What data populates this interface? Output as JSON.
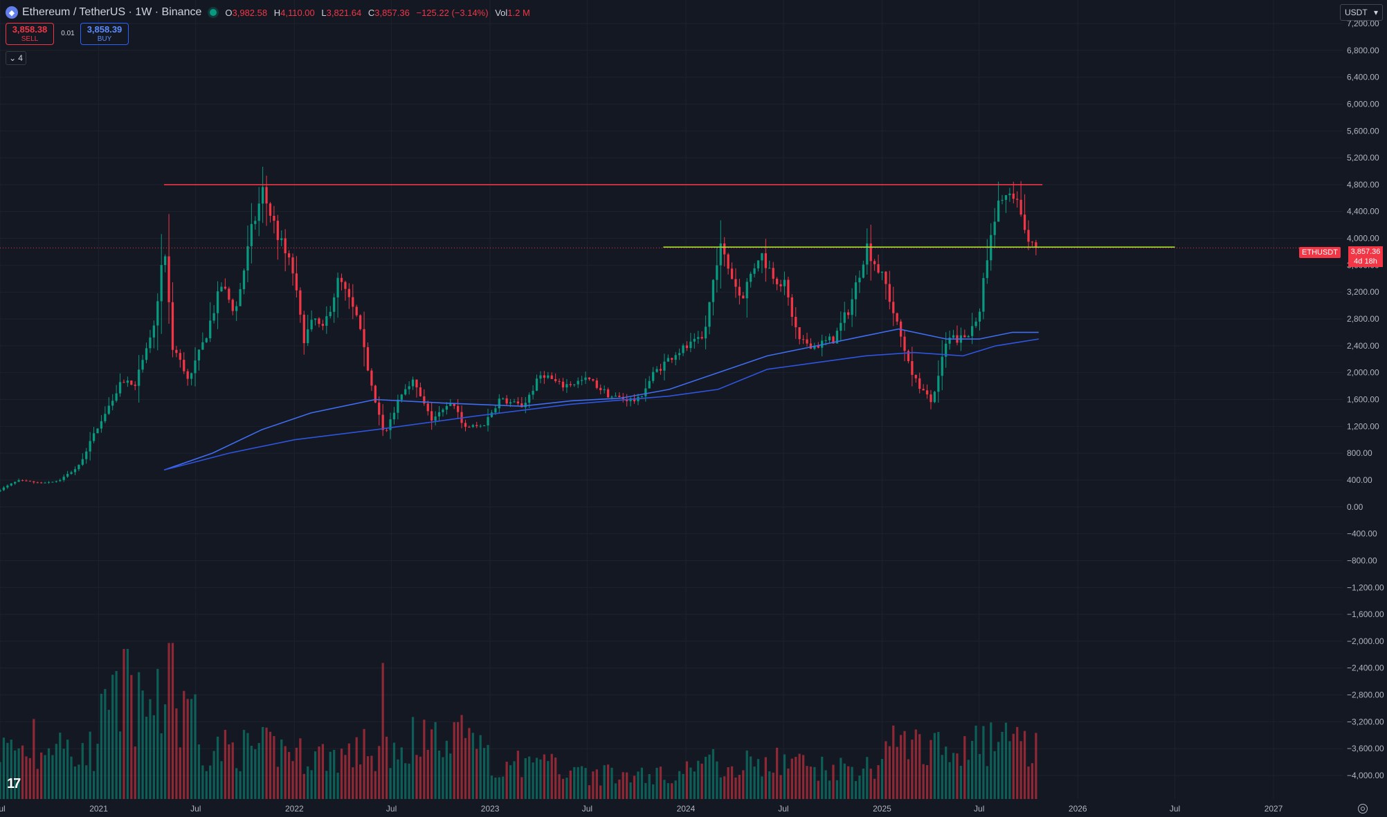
{
  "header": {
    "title": "Ethereum / TetherUS · 1W · Binance",
    "ohlc": {
      "open_label": "O",
      "open": "3,982.58",
      "high_label": "H",
      "high": "4,110.00",
      "low_label": "L",
      "low": "3,821.64",
      "close_label": "C",
      "close": "3,857.36",
      "change": "−125.22 (−3.14%)",
      "vol_label": "Vol",
      "vol": "1.2 M"
    }
  },
  "trade": {
    "sell_price": "3,858.38",
    "sell_label": "SELL",
    "buy_price": "3,858.39",
    "buy_label": "BUY",
    "spread": "0.01"
  },
  "indicators_toggle": {
    "count": "4"
  },
  "currency": "USDT",
  "last_price_tag": {
    "symbol": "ETHUSDT",
    "price": "3,857.36",
    "countdown": "4d 18h"
  },
  "colors": {
    "background": "#141823",
    "up": "#089981",
    "down": "#f23645",
    "ma_fast": "#3f6ef2",
    "ma_slow": "#2f55e0",
    "resistance": "#f23645",
    "support": "#a6e22e",
    "grid": "#1e222d"
  },
  "chart_data": {
    "type": "candlestick",
    "interval": "1W",
    "y_ticks": [
      7200,
      6800,
      6400,
      6000,
      5600,
      5200,
      4800,
      4400,
      4000,
      3600,
      3200,
      2800,
      2400,
      2000,
      1600,
      1200,
      800,
      400,
      0,
      -400,
      -800,
      -1200,
      -1600,
      -2000,
      -2400,
      -2800,
      -3200,
      -3600,
      -4000
    ],
    "y_tick_labels": [
      "7,200.00",
      "6,800.00",
      "6,400.00",
      "6,000.00",
      "5,600.00",
      "5,200.00",
      "4,800.00",
      "4,400.00",
      "4,000.00",
      "3,600.00",
      "3,200.00",
      "2,800.00",
      "2,400.00",
      "2,000.00",
      "1,600.00",
      "1,200.00",
      "800.00",
      "400.00",
      "0.00",
      "−400.00",
      "−800.00",
      "−1,200.00",
      "−1,600.00",
      "−2,000.00",
      "−2,400.00",
      "−2,800.00",
      "−3,200.00",
      "−3,600.00",
      "−4,000.00"
    ],
    "ylim": [
      -4350,
      7550
    ],
    "x_ticks": [
      {
        "label": "Jul",
        "date": "2020-07-01"
      },
      {
        "label": "2021",
        "date": "2021-01-01"
      },
      {
        "label": "Jul",
        "date": "2021-07-01"
      },
      {
        "label": "2022",
        "date": "2022-01-01"
      },
      {
        "label": "Jul",
        "date": "2022-07-01"
      },
      {
        "label": "2023",
        "date": "2023-01-01"
      },
      {
        "label": "Jul",
        "date": "2023-07-01"
      },
      {
        "label": "2024",
        "date": "2024-01-01"
      },
      {
        "label": "Jul",
        "date": "2024-07-01"
      },
      {
        "label": "2025",
        "date": "2025-01-01"
      },
      {
        "label": "Jul",
        "date": "2025-07-01"
      },
      {
        "label": "2026",
        "date": "2026-01-01"
      },
      {
        "label": "Jul",
        "date": "2026-07-01"
      },
      {
        "label": "2027",
        "date": "2027-01-01"
      }
    ],
    "xlim": [
      "2020-07-01",
      "2027-05-10"
    ],
    "last_price": 3857.36,
    "price_path": [
      [
        "2020-07-01",
        230
      ],
      [
        "2020-08-10",
        390
      ],
      [
        "2020-09-20",
        360
      ],
      [
        "2020-10-25",
        390
      ],
      [
        "2020-12-01",
        600
      ],
      [
        "2021-01-10",
        1250
      ],
      [
        "2021-02-20",
        1900
      ],
      [
        "2021-03-15",
        1800
      ],
      [
        "2021-04-20",
        2600
      ],
      [
        "2021-05-10",
        3900
      ],
      [
        "2021-05-25",
        2400
      ],
      [
        "2021-06-25",
        1900
      ],
      [
        "2021-07-25",
        2500
      ],
      [
        "2021-08-25",
        3300
      ],
      [
        "2021-09-20",
        2900
      ],
      [
        "2021-10-20",
        4100
      ],
      [
        "2021-11-10",
        4700
      ],
      [
        "2021-12-10",
        4000
      ],
      [
        "2022-01-05",
        3500
      ],
      [
        "2022-01-25",
        2500
      ],
      [
        "2022-02-15",
        2800
      ],
      [
        "2022-03-01",
        2600
      ],
      [
        "2022-04-01",
        3400
      ],
      [
        "2022-05-05",
        2800
      ],
      [
        "2022-06-01",
        1800
      ],
      [
        "2022-06-25",
        1050
      ],
      [
        "2022-07-25",
        1700
      ],
      [
        "2022-08-15",
        1900
      ],
      [
        "2022-09-20",
        1300
      ],
      [
        "2022-11-01",
        1550
      ],
      [
        "2022-11-20",
        1200
      ],
      [
        "2022-12-25",
        1200
      ],
      [
        "2023-01-25",
        1600
      ],
      [
        "2023-03-10",
        1500
      ],
      [
        "2023-04-15",
        2000
      ],
      [
        "2023-05-20",
        1800
      ],
      [
        "2023-07-10",
        1900
      ],
      [
        "2023-08-20",
        1650
      ],
      [
        "2023-10-10",
        1580
      ],
      [
        "2023-11-10",
        2000
      ],
      [
        "2023-12-20",
        2300
      ],
      [
        "2024-02-10",
        2500
      ],
      [
        "2024-03-10",
        3900
      ],
      [
        "2024-04-20",
        3100
      ],
      [
        "2024-05-25",
        3800
      ],
      [
        "2024-06-15",
        3500
      ],
      [
        "2024-07-10",
        3300
      ],
      [
        "2024-08-05",
        2500
      ],
      [
        "2024-09-05",
        2400
      ],
      [
        "2024-10-10",
        2500
      ],
      [
        "2024-11-10",
        3000
      ],
      [
        "2024-12-10",
        3900
      ],
      [
        "2025-01-15",
        3300
      ],
      [
        "2025-02-05",
        2700
      ],
      [
        "2025-03-10",
        1900
      ],
      [
        "2025-04-10",
        1550
      ],
      [
        "2025-05-10",
        2500
      ],
      [
        "2025-06-15",
        2500
      ],
      [
        "2025-07-10",
        3000
      ],
      [
        "2025-07-25",
        3800
      ],
      [
        "2025-08-20",
        4700
      ],
      [
        "2025-09-15",
        4500
      ],
      [
        "2025-10-10",
        3950
      ],
      [
        "2025-10-20",
        3857
      ]
    ],
    "moving_averages": [
      {
        "color_key": "ma_fast",
        "points": [
          [
            "2021-05-03",
            550
          ],
          [
            "2021-08-01",
            800
          ],
          [
            "2021-11-01",
            1150
          ],
          [
            "2022-02-01",
            1400
          ],
          [
            "2022-06-01",
            1600
          ],
          [
            "2022-10-01",
            1550
          ],
          [
            "2023-03-01",
            1500
          ],
          [
            "2023-06-01",
            1580
          ],
          [
            "2023-09-01",
            1620
          ],
          [
            "2023-12-01",
            1750
          ],
          [
            "2024-03-01",
            2000
          ],
          [
            "2024-06-01",
            2250
          ],
          [
            "2024-09-01",
            2400
          ],
          [
            "2024-12-01",
            2550
          ],
          [
            "2025-02-01",
            2650
          ],
          [
            "2025-05-01",
            2500
          ],
          [
            "2025-07-01",
            2500
          ],
          [
            "2025-09-01",
            2600
          ],
          [
            "2025-10-20",
            2600
          ]
        ]
      },
      {
        "color_key": "ma_slow",
        "points": [
          [
            "2021-05-03",
            550
          ],
          [
            "2021-09-01",
            800
          ],
          [
            "2022-01-01",
            1000
          ],
          [
            "2022-06-01",
            1150
          ],
          [
            "2022-12-01",
            1350
          ],
          [
            "2023-06-01",
            1530
          ],
          [
            "2023-12-01",
            1650
          ],
          [
            "2024-03-01",
            1750
          ],
          [
            "2024-06-01",
            2050
          ],
          [
            "2024-09-01",
            2150
          ],
          [
            "2024-12-01",
            2250
          ],
          [
            "2025-03-01",
            2300
          ],
          [
            "2025-06-01",
            2250
          ],
          [
            "2025-08-01",
            2400
          ],
          [
            "2025-10-20",
            2500
          ]
        ]
      }
    ],
    "horizontal_lines": [
      {
        "color_key": "resistance",
        "value": 4800,
        "from": "2021-05-03",
        "to": "2025-10-27"
      },
      {
        "color_key": "support",
        "value": 3870,
        "from": "2023-11-20",
        "to": "2026-07-01"
      }
    ],
    "volume": {
      "baseline": -4350,
      "max_value": -1370,
      "note_unit": "volume bars share the price scale region at the bottom of the pane",
      "segments": [
        {
          "from": "2020-07-01",
          "to": "2021-01-01",
          "level": 0.25
        },
        {
          "from": "2021-01-01",
          "to": "2021-07-01",
          "level": 0.45
        },
        {
          "from": "2021-07-01",
          "to": "2022-01-01",
          "level": 0.25
        },
        {
          "from": "2022-01-01",
          "to": "2022-07-01",
          "level": 0.22
        },
        {
          "from": "2022-07-01",
          "to": "2023-01-01",
          "level": 0.3
        },
        {
          "from": "2023-01-01",
          "to": "2023-07-01",
          "level": 0.17
        },
        {
          "from": "2023-07-01",
          "to": "2024-01-01",
          "level": 0.12
        },
        {
          "from": "2024-01-01",
          "to": "2024-07-01",
          "level": 0.18
        },
        {
          "from": "2024-07-01",
          "to": "2025-01-01",
          "level": 0.16
        },
        {
          "from": "2025-01-01",
          "to": "2025-07-01",
          "level": 0.26
        },
        {
          "from": "2025-07-01",
          "to": "2025-10-20",
          "level": 0.28
        }
      ],
      "spikes": [
        [
          "2020-09-01",
          0.4
        ],
        [
          "2021-01-15",
          0.55
        ],
        [
          "2021-02-20",
          0.75
        ],
        [
          "2021-05-15",
          0.78
        ],
        [
          "2021-06-20",
          0.5
        ],
        [
          "2022-05-10",
          0.35
        ],
        [
          "2022-06-15",
          0.68
        ],
        [
          "2022-11-10",
          0.42
        ],
        [
          "2024-08-05",
          0.22
        ],
        [
          "2025-02-05",
          0.32
        ],
        [
          "2025-04-10",
          0.33
        ]
      ]
    }
  }
}
